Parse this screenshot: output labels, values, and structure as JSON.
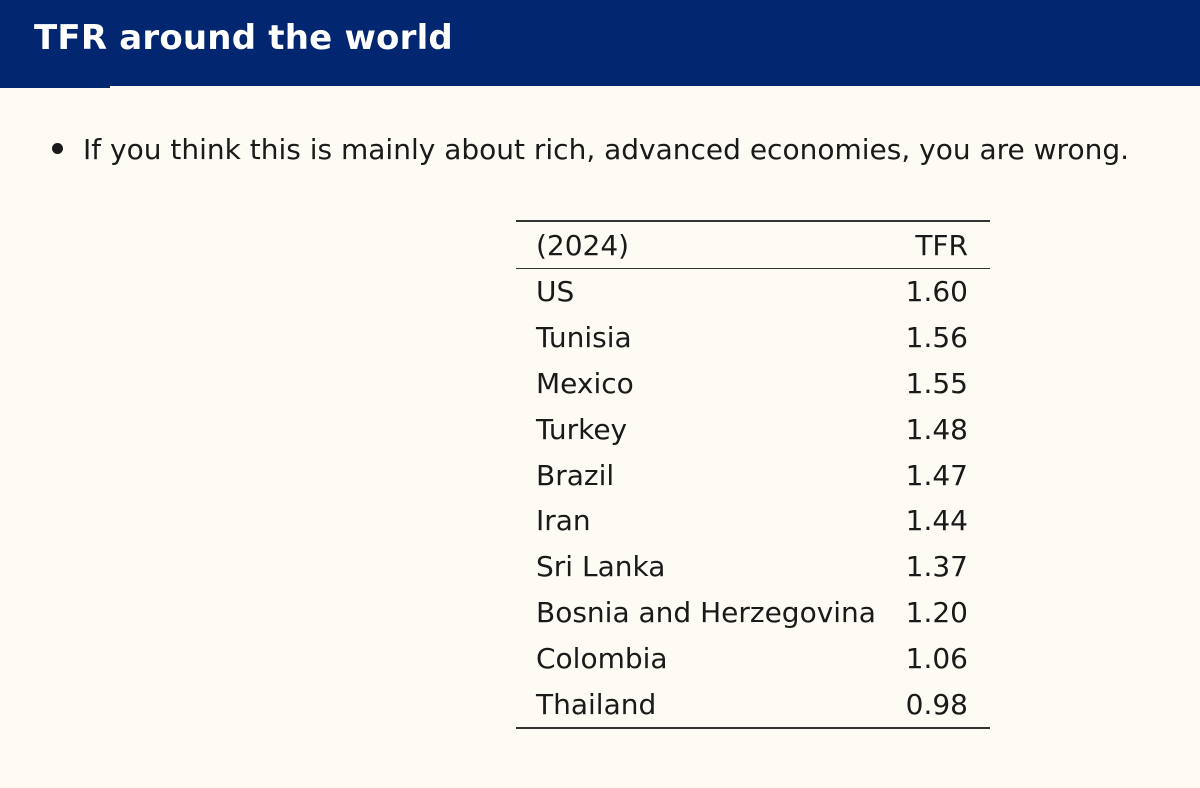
{
  "slide": {
    "title": "TFR around the world",
    "bullet": "If you think this is mainly about rich, advanced economies, you are wrong."
  },
  "table": {
    "header_col1": "(2024)",
    "header_col2": "TFR",
    "rows": [
      {
        "country": "US",
        "tfr": "1.60"
      },
      {
        "country": "Tunisia",
        "tfr": "1.56"
      },
      {
        "country": "Mexico",
        "tfr": "1.55"
      },
      {
        "country": "Turkey",
        "tfr": "1.48"
      },
      {
        "country": "Brazil",
        "tfr": "1.47"
      },
      {
        "country": "Iran",
        "tfr": "1.44"
      },
      {
        "country": "Sri Lanka",
        "tfr": "1.37"
      },
      {
        "country": "Bosnia and Herzegovina",
        "tfr": "1.20"
      },
      {
        "country": "Colombia",
        "tfr": "1.06"
      },
      {
        "country": "Thailand",
        "tfr": "0.98"
      }
    ]
  },
  "colors": {
    "title_bar": "#032670",
    "background": "#fdfbf3"
  }
}
